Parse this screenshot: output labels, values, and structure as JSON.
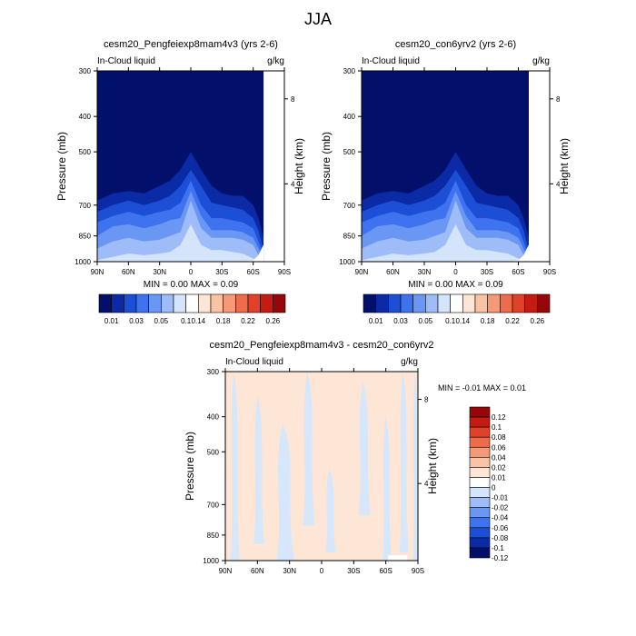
{
  "page_title": "JJA",
  "colors": {
    "cb_main": [
      "#03106b",
      "#0a2aa6",
      "#1c4fd6",
      "#3e72ef",
      "#6a96f4",
      "#9dbcf8",
      "#d3e4fb",
      "#ffffff",
      "#fde6d5",
      "#f9c3a4",
      "#f59a76",
      "#ee6c4c",
      "#e0412a",
      "#c51b12",
      "#96070a"
    ],
    "cb_diff": [
      "#96070a",
      "#c51b12",
      "#e0412a",
      "#ee6c4c",
      "#f59a76",
      "#f9c3a4",
      "#fde6d5",
      "#ffffff",
      "#d3e4fb",
      "#9dbcf8",
      "#6a96f4",
      "#3e72ef",
      "#1c4fd6",
      "#0a2aa6",
      "#03106b"
    ],
    "diff_pos": "#fde6d5",
    "diff_neg": "#d6e7fb"
  },
  "chart_data": [
    {
      "type": "heatmap",
      "id": "p1",
      "title": "cesm20_Pengfeiexp8mam4v3 (yrs 2-6)",
      "left_label": "In-Cloud liquid",
      "right_label": "g/kg",
      "xlabel": "",
      "ylabel": "Pressure (mb)",
      "ylabel_right": "Height (km)",
      "x_ticks": [
        "90N",
        "60N",
        "30N",
        "0",
        "30S",
        "60S",
        "90S"
      ],
      "y_ticks": [
        300,
        400,
        500,
        700,
        850,
        1000
      ],
      "y_right_ticks": [
        8,
        4
      ],
      "ylim": [
        300,
        1000
      ],
      "min_max_text": "MIN =   0.00  MAX =   0.09",
      "colorbar_labels": [
        "0.01",
        "0.03",
        "0.05",
        "0.1",
        "0.14",
        "0.18",
        "0.22",
        "0.26"
      ],
      "x": [
        90,
        75,
        60,
        45,
        30,
        20,
        10,
        0,
        -10,
        -20,
        -30,
        -40,
        -50,
        -60,
        -65,
        -70
      ],
      "surface": [
        1000,
        1000,
        1000,
        1000,
        1000,
        1000,
        1000,
        1000,
        1000,
        1000,
        1000,
        1000,
        1000,
        990,
        960,
        900
      ],
      "contours": [
        {
          "level": 1,
          "tops": [
            680,
            650,
            640,
            650,
            620,
            600,
            560,
            500,
            560,
            620,
            650,
            660,
            660,
            700,
            760,
            860
          ]
        },
        {
          "level": 2,
          "tops": [
            730,
            700,
            680,
            700,
            680,
            660,
            620,
            560,
            620,
            690,
            700,
            710,
            720,
            760,
            820,
            930
          ]
        },
        {
          "level": 3,
          "tops": [
            780,
            750,
            730,
            750,
            730,
            720,
            690,
            600,
            700,
            760,
            760,
            770,
            780,
            810,
            880,
            960
          ]
        },
        {
          "level": 4,
          "tops": [
            850,
            800,
            790,
            810,
            790,
            770,
            760,
            640,
            750,
            820,
            820,
            820,
            830,
            860,
            920,
            990
          ]
        },
        {
          "level": 5,
          "tops": [
            920,
            880,
            860,
            880,
            870,
            850,
            830,
            680,
            810,
            860,
            860,
            860,
            870,
            900,
            960,
            1000
          ]
        },
        {
          "level": 6,
          "tops": [
            990,
            970,
            950,
            960,
            950,
            940,
            900,
            790,
            900,
            930,
            930,
            940,
            950,
            980,
            1000,
            1000
          ]
        }
      ]
    },
    {
      "type": "heatmap",
      "id": "p2",
      "title": "cesm20_con6yrv2 (yrs 2-6)",
      "left_label": "In-Cloud liquid",
      "right_label": "g/kg",
      "xlabel": "",
      "ylabel": "Pressure (mb)",
      "ylabel_right": "Height (km)",
      "x_ticks": [
        "90N",
        "60N",
        "30N",
        "0",
        "30S",
        "60S",
        "90S"
      ],
      "y_ticks": [
        300,
        400,
        500,
        700,
        850,
        1000
      ],
      "y_right_ticks": [
        8,
        4
      ],
      "ylim": [
        300,
        1000
      ],
      "min_max_text": "MIN =   0.00  MAX =   0.09",
      "colorbar_labels": [
        "0.01",
        "0.03",
        "0.05",
        "0.1",
        "0.14",
        "0.18",
        "0.22",
        "0.26"
      ],
      "x": [
        90,
        75,
        60,
        45,
        30,
        20,
        10,
        0,
        -10,
        -20,
        -30,
        -40,
        -50,
        -60,
        -65,
        -70
      ],
      "surface": [
        1000,
        1000,
        1000,
        1000,
        1000,
        1000,
        1000,
        1000,
        1000,
        1000,
        1000,
        1000,
        1000,
        990,
        960,
        900
      ],
      "contours": [
        {
          "level": 1,
          "tops": [
            680,
            650,
            640,
            650,
            620,
            600,
            560,
            500,
            560,
            620,
            650,
            660,
            660,
            700,
            760,
            860
          ]
        },
        {
          "level": 2,
          "tops": [
            730,
            700,
            680,
            700,
            680,
            660,
            620,
            560,
            620,
            690,
            700,
            710,
            720,
            760,
            820,
            930
          ]
        },
        {
          "level": 3,
          "tops": [
            780,
            750,
            730,
            750,
            730,
            720,
            690,
            600,
            700,
            760,
            760,
            770,
            780,
            810,
            880,
            960
          ]
        },
        {
          "level": 4,
          "tops": [
            850,
            800,
            790,
            810,
            790,
            770,
            760,
            640,
            750,
            820,
            820,
            820,
            830,
            860,
            920,
            990
          ]
        },
        {
          "level": 5,
          "tops": [
            920,
            880,
            860,
            880,
            870,
            850,
            830,
            680,
            810,
            860,
            860,
            860,
            870,
            900,
            960,
            1000
          ]
        },
        {
          "level": 6,
          "tops": [
            990,
            970,
            950,
            960,
            950,
            940,
            900,
            790,
            900,
            930,
            930,
            940,
            950,
            980,
            1000,
            1000
          ]
        }
      ]
    },
    {
      "type": "heatmap",
      "id": "p3",
      "title": "cesm20_Pengfeiexp8mam4v3 - cesm20_con6yrv2",
      "left_label": "In-Cloud liquid",
      "right_label": "g/kg",
      "xlabel": "",
      "ylabel": "Pressure (mb)",
      "ylabel_right": "Height (km)",
      "x_ticks": [
        "90N",
        "60N",
        "30N",
        "0",
        "30S",
        "60S",
        "90S"
      ],
      "y_ticks": [
        300,
        400,
        500,
        700,
        850,
        1000
      ],
      "y_right_ticks": [
        8,
        4
      ],
      "ylim": [
        300,
        1000
      ],
      "min_max_text": "MIN =  -0.01  MAX =   0.01",
      "colorbar_labels": [
        "0.12",
        "0.1",
        "0.08",
        "0.06",
        "0.04",
        "0.02",
        "0.01",
        "0",
        "-0.01",
        "-0.02",
        "-0.04",
        "-0.06",
        "-0.08",
        "-0.1",
        "-0.12"
      ],
      "negative_bands": [
        {
          "x": [
            84,
            78
          ],
          "p": [
            300,
            1000
          ]
        },
        {
          "x": [
            62,
            55
          ],
          "p": [
            350,
            900
          ]
        },
        {
          "x": [
            40,
            28
          ],
          "p": [
            420,
            1000
          ]
        },
        {
          "x": [
            16,
            8
          ],
          "p": [
            300,
            800
          ]
        },
        {
          "x": [
            -5,
            -12
          ],
          "p": [
            560,
            950
          ]
        },
        {
          "x": [
            -36,
            -44
          ],
          "p": [
            320,
            750
          ]
        },
        {
          "x": [
            -58,
            -64
          ],
          "p": [
            400,
            1000
          ]
        },
        {
          "x": [
            -74,
            -80
          ],
          "p": [
            300,
            950
          ]
        },
        {
          "x": [
            -86,
            -90
          ],
          "p": [
            300,
            1000
          ]
        }
      ]
    }
  ]
}
